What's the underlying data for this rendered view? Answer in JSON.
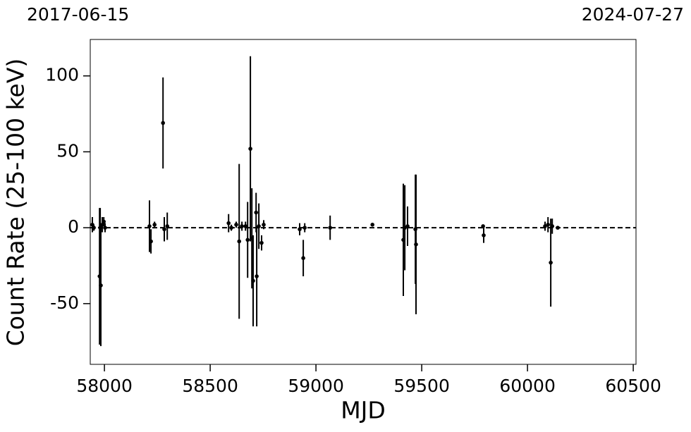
{
  "chart_data": {
    "type": "scatter",
    "x_label": "MJD",
    "y_label": "Count Rate (25-100 keV)",
    "top_labels": [
      "2017-06-15",
      "2024-07-27"
    ],
    "xlim": [
      57933,
      60513
    ],
    "ylim": [
      -90,
      124
    ],
    "xticks": [
      58000,
      58500,
      59000,
      59500,
      60000,
      60500
    ],
    "yticks": [
      -50,
      0,
      50,
      100
    ],
    "reference_line": 0,
    "series": [
      {
        "color": "#000000",
        "x": [
          57943,
          57950,
          57977,
          57980,
          57983,
          57990,
          57997,
          58003,
          58213,
          58220,
          58237,
          58277,
          58283,
          58297,
          58587,
          58600,
          58623,
          58637,
          58650,
          58667,
          58677,
          58690,
          58697,
          58703,
          58717,
          58720,
          58730,
          58743,
          58753,
          58923,
          58940,
          58947,
          59067,
          59267,
          59413,
          59420,
          59433,
          59470,
          59473,
          59790,
          59793,
          60083,
          60097,
          60110,
          60117,
          60143
        ],
        "values": [
          2,
          0,
          -32,
          0,
          -38,
          2,
          4,
          0,
          1,
          -9,
          2,
          69,
          -1,
          1,
          3,
          0,
          2,
          -9,
          1,
          1,
          -8,
          52,
          -7,
          -35,
          10,
          -32,
          1,
          -10,
          2,
          -1,
          -20,
          0,
          0,
          2,
          -8,
          0,
          1,
          -1,
          -11,
          1,
          -5,
          1,
          2,
          -23,
          1,
          0
        ],
        "errors": [
          5,
          2,
          45,
          13,
          40,
          5,
          3,
          3,
          17,
          8,
          2,
          30,
          8,
          9,
          6,
          2,
          2,
          51,
          3,
          3,
          25,
          61,
          33,
          30,
          13,
          33,
          15,
          5,
          3,
          4,
          12,
          3,
          8,
          1,
          37,
          28,
          13,
          36,
          46,
          1,
          5,
          3,
          5,
          29,
          5,
          1
        ]
      }
    ]
  }
}
